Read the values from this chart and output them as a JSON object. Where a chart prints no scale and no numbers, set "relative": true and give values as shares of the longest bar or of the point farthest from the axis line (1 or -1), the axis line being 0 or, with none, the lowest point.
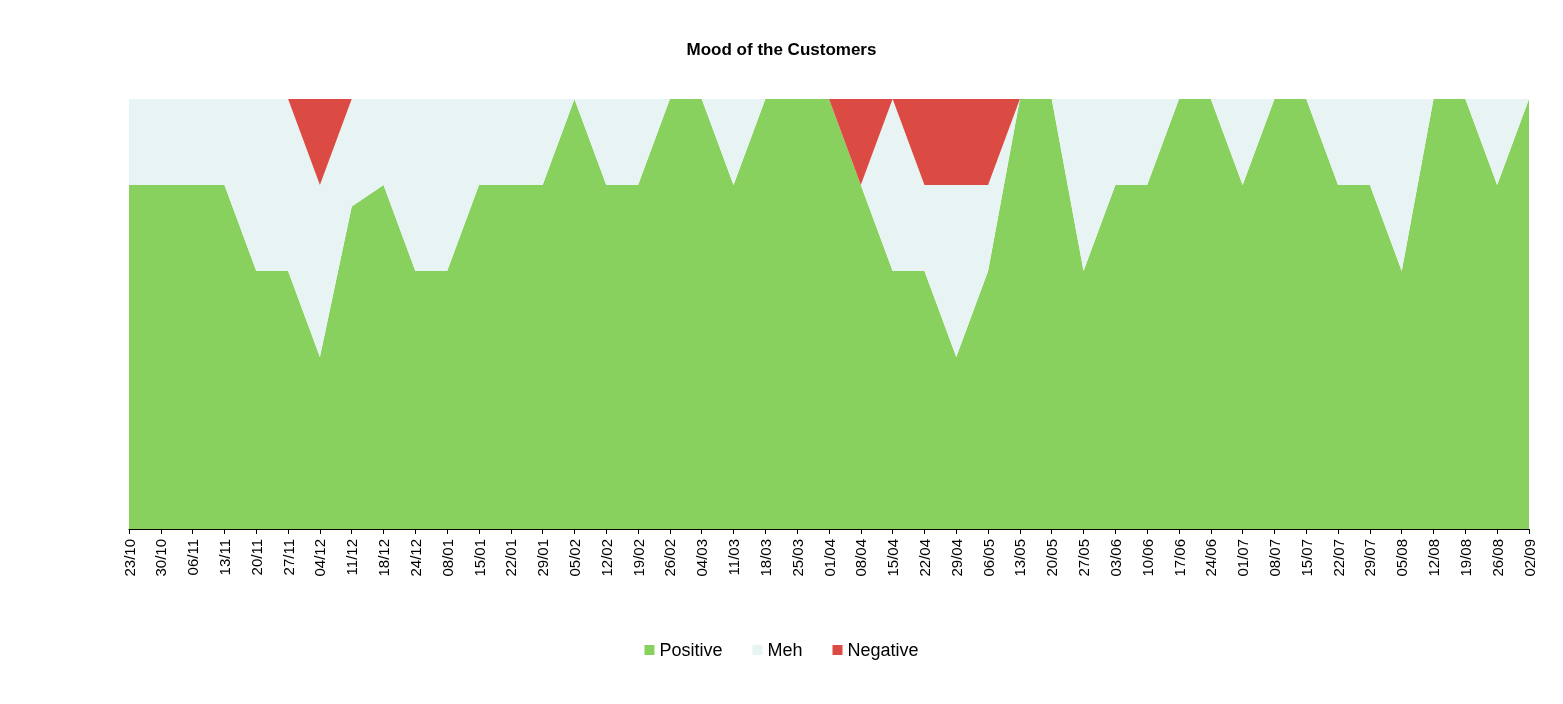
{
  "chart_data": {
    "type": "area",
    "title": "Mood of the Customers",
    "relative": true,
    "stacked": true,
    "grid": false,
    "legend": "bottom",
    "categories": [
      "23/10",
      "30/10",
      "06/11",
      "13/11",
      "20/11",
      "27/11",
      "04/12",
      "11/12",
      "18/12",
      "24/12",
      "08/01",
      "15/01",
      "22/01",
      "29/01",
      "05/02",
      "12/02",
      "19/02",
      "26/02",
      "04/03",
      "11/03",
      "18/03",
      "25/03",
      "01/04",
      "08/04",
      "15/04",
      "22/04",
      "29/04",
      "06/05",
      "13/05",
      "20/05",
      "27/05",
      "03/06",
      "10/06",
      "17/06",
      "24/06",
      "01/07",
      "08/07",
      "15/07",
      "22/07",
      "29/07",
      "05/08",
      "12/08",
      "19/08",
      "26/08",
      "02/09"
    ],
    "series": [
      {
        "name": "Positive",
        "color": "#88d15e",
        "values": [
          0.8,
          0.8,
          0.8,
          0.8,
          0.6,
          0.6,
          0.4,
          0.75,
          0.8,
          0.6,
          0.6,
          0.8,
          0.8,
          0.8,
          1,
          0.8,
          0.8,
          1,
          1,
          0.8,
          1,
          1,
          1,
          0.8,
          0.6,
          0.6,
          0.4,
          0.6,
          1,
          1,
          0.6,
          0.8,
          0.8,
          1,
          1,
          0.8,
          1,
          1,
          0.8,
          0.8,
          0.6,
          1,
          1,
          0.8,
          1
        ]
      },
      {
        "name": "Meh",
        "color": "#e8f4f4",
        "values": [
          0.2,
          0.2,
          0.2,
          0.2,
          0.4,
          0.4,
          0.4,
          0.25,
          0.2,
          0.4,
          0.4,
          0.2,
          0.2,
          0.2,
          0,
          0.2,
          0.2,
          0,
          0,
          0.2,
          0,
          0,
          0,
          0,
          0.4,
          0.2,
          0.4,
          0.2,
          0,
          0,
          0.4,
          0.2,
          0.2,
          0,
          0,
          0.2,
          0,
          0,
          0.2,
          0.2,
          0.4,
          0,
          0,
          0.2,
          0
        ]
      },
      {
        "name": "Negative",
        "color": "#db4b43",
        "values": [
          0,
          0,
          0,
          0,
          0,
          0,
          0.2,
          0,
          0,
          0,
          0,
          0,
          0,
          0,
          0,
          0,
          0,
          0,
          0,
          0,
          0,
          0,
          0,
          0.2,
          0,
          0.2,
          0.2,
          0.2,
          0,
          0,
          0,
          0,
          0,
          0,
          0,
          0,
          0,
          0,
          0,
          0,
          0,
          0,
          0,
          0,
          0
        ]
      }
    ]
  }
}
